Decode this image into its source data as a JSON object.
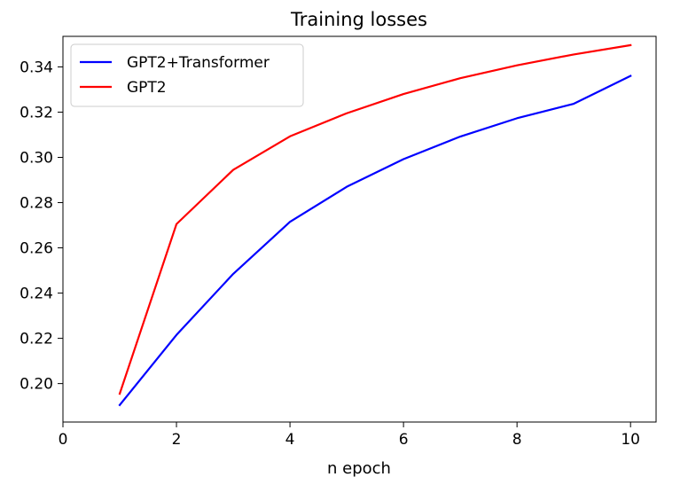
{
  "chart_data": {
    "type": "line",
    "title": "Training losses",
    "xlabel": "n epoch",
    "ylabel": "",
    "xlim": [
      0,
      10.45
    ],
    "ylim": [
      0.183,
      0.3535
    ],
    "xticks": [
      0,
      2,
      4,
      6,
      8,
      10
    ],
    "yticks": [
      0.2,
      0.22,
      0.24,
      0.26,
      0.28,
      0.3,
      0.32,
      0.34
    ],
    "xtick_labels": [
      "0",
      "2",
      "4",
      "6",
      "8",
      "10"
    ],
    "ytick_labels": [
      "0.20",
      "0.22",
      "0.24",
      "0.26",
      "0.28",
      "0.30",
      "0.32",
      "0.34"
    ],
    "grid": false,
    "legend_position": "upper-left",
    "x": [
      1,
      2,
      3,
      4,
      5,
      6,
      7,
      8,
      9,
      10
    ],
    "series": [
      {
        "name": "GPT2+Transformer",
        "color": "#0000ff",
        "values": [
          0.1905,
          0.2215,
          0.2485,
          0.2715,
          0.287,
          0.2992,
          0.3092,
          0.3173,
          0.3237,
          0.336
        ]
      },
      {
        "name": "GPT2",
        "color": "#ff0000",
        "values": [
          0.1955,
          0.2705,
          0.2945,
          0.3093,
          0.3195,
          0.328,
          0.335,
          0.3407,
          0.3455,
          0.3496
        ]
      }
    ]
  }
}
